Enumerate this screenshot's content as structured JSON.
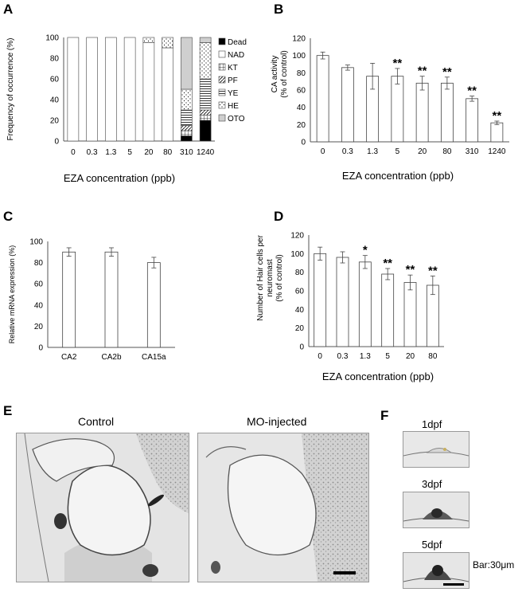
{
  "panel_labels": [
    "A",
    "B",
    "C",
    "D",
    "E",
    "F"
  ],
  "chart_data": [
    {
      "id": "A",
      "type": "bar",
      "stacked": true,
      "categories": [
        "0",
        "0.3",
        "1.3",
        "5",
        "20",
        "80",
        "310",
        "1240"
      ],
      "xlabel": "EZA concentration (ppb)",
      "ylabel": "Frequency of occurrence (%)",
      "ylim": [
        0,
        100
      ],
      "yticks": [
        "0",
        "20",
        "40",
        "60",
        "80",
        "100"
      ],
      "legend_position": "right",
      "series": [
        {
          "name": "Dead",
          "fill": "#000000",
          "values": [
            0,
            0,
            0,
            0,
            0,
            0,
            5,
            20
          ]
        },
        {
          "name": "NAD",
          "fill": "#ffffff",
          "values": [
            100,
            100,
            100,
            100,
            95,
            90,
            0,
            0
          ]
        },
        {
          "name": "KT",
          "fill": "pattern-grid",
          "values": [
            0,
            0,
            0,
            0,
            0,
            0,
            5,
            5
          ]
        },
        {
          "name": "PF",
          "fill": "pattern-diag",
          "values": [
            0,
            0,
            0,
            0,
            0,
            0,
            5,
            5
          ]
        },
        {
          "name": "YE",
          "fill": "pattern-horiz",
          "values": [
            0,
            0,
            0,
            0,
            0,
            0,
            15,
            30
          ]
        },
        {
          "name": "HE",
          "fill": "pattern-dots",
          "values": [
            0,
            0,
            0,
            0,
            5,
            10,
            20,
            35
          ]
        },
        {
          "name": "OTO",
          "fill": "#cfcfcf",
          "values": [
            0,
            0,
            0,
            0,
            0,
            0,
            50,
            5
          ]
        }
      ]
    },
    {
      "id": "B",
      "type": "bar",
      "categories": [
        "0",
        "0.3",
        "1.3",
        "5",
        "20",
        "80",
        "310",
        "1240"
      ],
      "values": [
        100,
        86,
        76,
        76,
        68,
        68,
        50,
        22
      ],
      "errors": [
        4,
        3,
        15,
        9,
        8,
        7,
        3,
        2
      ],
      "significance": [
        "",
        "",
        "",
        "**",
        "**",
        "**",
        "**",
        "**"
      ],
      "xlabel": "EZA concentration (ppb)",
      "ylabel": [
        "CA activity",
        "(% of control)"
      ],
      "ylim": [
        0,
        120
      ],
      "yticks": [
        "0",
        "20",
        "40",
        "60",
        "80",
        "100",
        "120"
      ]
    },
    {
      "id": "C",
      "type": "bar",
      "categories": [
        "CA2",
        "CA2b",
        "CA15a"
      ],
      "values": [
        90,
        90,
        80
      ],
      "errors": [
        4,
        4,
        5
      ],
      "xlabel": "",
      "ylabel": "Relative mRNA expression (%)",
      "ylim": [
        0,
        100
      ],
      "yticks": [
        "0",
        "20",
        "40",
        "60",
        "80",
        "100"
      ]
    },
    {
      "id": "D",
      "type": "bar",
      "categories": [
        "0",
        "0.3",
        "1.3",
        "5",
        "20",
        "80"
      ],
      "values": [
        100,
        96,
        91,
        78,
        69,
        66
      ],
      "errors": [
        7,
        6,
        7,
        6,
        8,
        10
      ],
      "significance": [
        "",
        "",
        "*",
        "**",
        "**",
        "**"
      ],
      "xlabel": "EZA concentration (ppb)",
      "ylabel": [
        "Number of Hair cells per",
        "neuromast",
        "(% of control)"
      ],
      "ylim": [
        0,
        120
      ],
      "yticks": [
        "0",
        "20",
        "40",
        "60",
        "80",
        "100",
        "120"
      ]
    }
  ],
  "panel_e": {
    "left_title": "Control",
    "right_title": "MO-injected"
  },
  "panel_f": {
    "labels": [
      "1dpf",
      "3dpf",
      "5dpf"
    ],
    "scale_bar": "Bar:30μm"
  }
}
